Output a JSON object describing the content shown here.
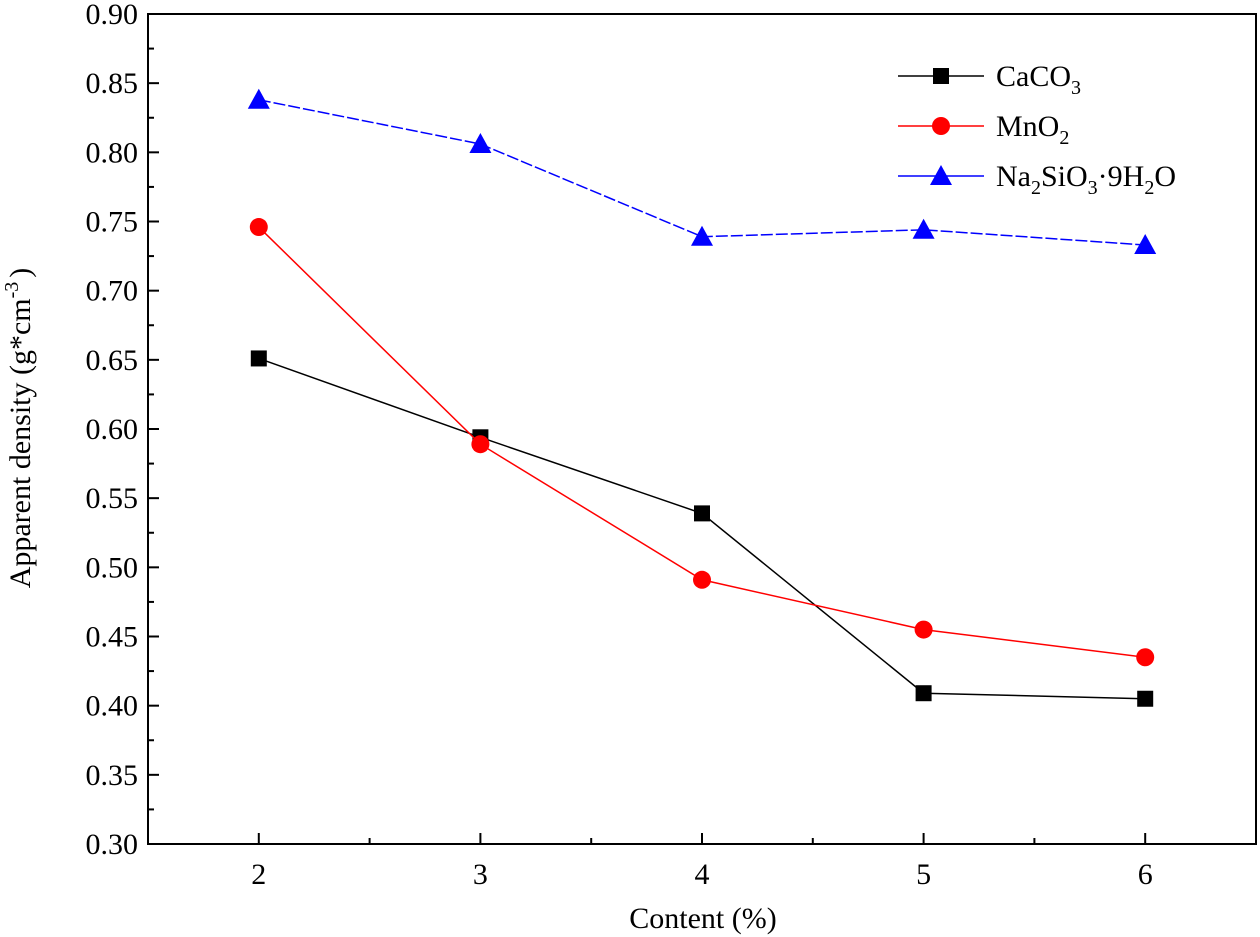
{
  "chart_data": {
    "type": "line",
    "x": [
      2,
      3,
      4,
      5,
      6
    ],
    "xlabel": "Content (%)",
    "ylabel": {
      "main": "Apparent density (g*cm",
      "sup": "-3",
      "end": ")"
    },
    "xlim": [
      1.5,
      6.5
    ],
    "ylim": [
      0.3,
      0.9
    ],
    "xticks": [
      "2",
      "3",
      "4",
      "5",
      "6"
    ],
    "yticks": [
      "0.30",
      "0.35",
      "0.40",
      "0.45",
      "0.50",
      "0.55",
      "0.60",
      "0.65",
      "0.70",
      "0.75",
      "0.80",
      "0.85",
      "0.90"
    ],
    "grid": false,
    "legend_position": "top-right",
    "series": [
      {
        "key": "caco3",
        "name": "CaCO3",
        "label_parts": [
          [
            "CaCO",
            ""
          ],
          [
            "3",
            "sub"
          ]
        ],
        "color": "#000000",
        "marker": "square",
        "dash": false,
        "values": [
          0.651,
          0.594,
          0.539,
          0.409,
          0.405
        ]
      },
      {
        "key": "mno2",
        "name": "MnO2",
        "label_parts": [
          [
            "MnO",
            ""
          ],
          [
            "2",
            "sub"
          ]
        ],
        "color": "#ff0000",
        "marker": "circle",
        "dash": false,
        "values": [
          0.746,
          0.589,
          0.491,
          0.455,
          0.435
        ]
      },
      {
        "key": "na2sio3",
        "name": "Na2SiO3·9H2O",
        "label_parts": [
          [
            "Na",
            ""
          ],
          [
            "2",
            "sub"
          ],
          [
            "SiO",
            ""
          ],
          [
            "3",
            "sub"
          ],
          [
            "·9H",
            ""
          ],
          [
            "2",
            "sub"
          ],
          [
            "O",
            ""
          ]
        ],
        "color": "#0000ff",
        "marker": "triangle",
        "dash": true,
        "values": [
          0.838,
          0.806,
          0.739,
          0.744,
          0.733
        ]
      }
    ]
  }
}
